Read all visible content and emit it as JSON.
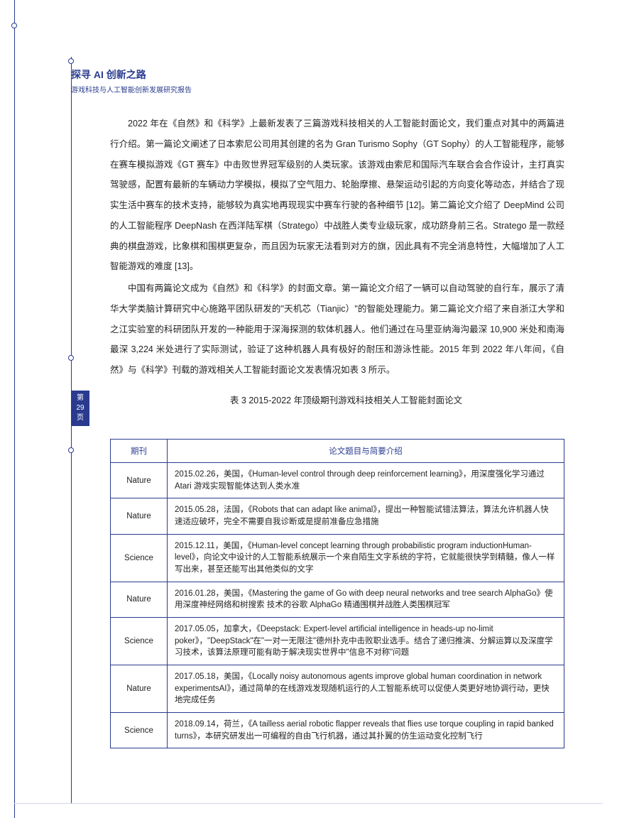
{
  "colors": {
    "accent": "#2a3b8f",
    "text": "#222222",
    "bg": "#ffffff"
  },
  "header": {
    "title": "探寻 AI 创新之路",
    "subtitle": "游戏科技与人工智能创新发展研究报告"
  },
  "page_tab": {
    "line1": "第",
    "line2": "29",
    "line3": "页"
  },
  "paragraphs": {
    "p1": "2022 年在《自然》和《科学》上最新发表了三篇游戏科技相关的人工智能封面论文，我们重点对其中的两篇进行介绍。第一篇论文阐述了日本索尼公司用其创建的名为 Gran Turismo Sophy（GT Sophy）的人工智能程序，能够在赛车模拟游戏《GT 赛车》中击败世界冠军级别的人类玩家。该游戏由索尼和国际汽车联合会合作设计，主打真实驾驶感，配置有最新的车辆动力学模拟，模拟了空气阻力、轮胎摩擦、悬架运动引起的方向变化等动态，并结合了现实生活中赛车的技术支持，能够较为真实地再现现实中赛车行驶的各种细节 [12]。第二篇论文介绍了 DeepMind 公司的人工智能程序 DeepNash 在西洋陆军棋（Stratego）中战胜人类专业级玩家，成功跻身前三名。Stratego 是一款经典的棋盘游戏，比象棋和围棋更复杂，而且因为玩家无法看到对方的旗，因此具有不完全消息特性，大幅增加了人工智能游戏的难度 [13]。",
    "p2": "中国有两篇论文成为《自然》和《科学》的封面文章。第一篇论文介绍了一辆可以自动驾驶的自行车，展示了清华大学类脑计算研究中心施路平团队研发的\"天机芯（Tianjic）\"的智能处理能力。第二篇论文介绍了来自浙江大学和之江实验室的科研团队开发的一种能用于深海探测的软体机器人。他们通过在马里亚纳海沟最深 10,900 米处和南海最深 3,224 米处进行了实际测试，验证了这种机器人具有极好的耐压和游泳性能。2015 年到 2022 年八年间，《自然》与《科学》刊载的游戏相关人工智能封面论文发表情况如表 3 所示。"
  },
  "table": {
    "caption": "表 3 2015-2022 年顶级期刊游戏科技相关人工智能封面论文",
    "columns": [
      "期刊",
      "论文题目与简要介绍"
    ],
    "rows": [
      {
        "journal": "Nature",
        "desc": "2015.02.26，美国，《Human-level control through deep reinforcement learning》，用深度强化学习通过 Atari 游戏实现智能体达到人类水准"
      },
      {
        "journal": "Nature",
        "desc": "2015.05.28，法国，《Robots that can adapt like animal》，提出一种智能试错法算法，算法允许机器人快速适应破坏，完全不需要自我诊断或是提前准备应急措施"
      },
      {
        "journal": "Science",
        "desc": "2015.12.11，美国，《Human-level concept learning through probabilistic program inductionHuman-level》，向论文中设计的人工智能系统展示一个来自陌生文字系统的字符，它就能很快学到精髓，像人一样写出来，甚至还能写出其他类似的文字"
      },
      {
        "journal": "Nature",
        "desc": "2016.01.28，美国，《Mastering the game of Go with deep neural networks and tree search AlphaGo》使用深度神经网络和树搜索 技术的谷歌 AlphaGo 精通围棋并战胜人类围棋冠军"
      },
      {
        "journal": "Science",
        "desc": "2017.05.05，加拿大，《Deepstack: Expert-level artificial intelligence in heads-up no-limit poker》，\"DeepStack\"在\"一对一无限注\"德州扑克中击败职业选手。结合了递归推演、分解运算以及深度学习技术，该算法原理可能有助于解决现实世界中\"信息不对称\"问题"
      },
      {
        "journal": "Nature",
        "desc": "2017.05.18，美国，《Locally noisy autonomous agents improve global human coordination in network experimentsAI》，通过简单的在线游戏发现随机运行的人工智能系统可以促使人类更好地协调行动，更快地完成任务"
      },
      {
        "journal": "Science",
        "desc": "2018.09.14，荷兰，《A tailless aerial robotic flapper reveals that flies use torque coupling in rapid banked turns》，本研究研发出一可编程的自由飞行机器，通过其扑翼的仿生运动变化控制飞行"
      }
    ]
  }
}
